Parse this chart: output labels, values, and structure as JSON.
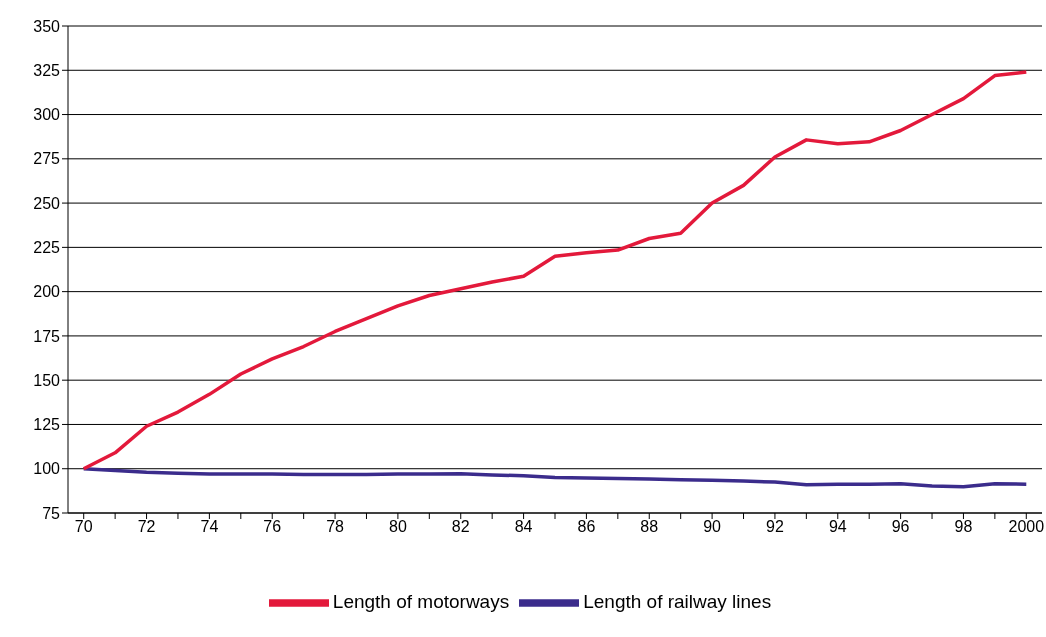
{
  "chart_data": {
    "type": "line",
    "categories": [
      "70",
      null,
      "72",
      null,
      "74",
      null,
      "76",
      null,
      "78",
      null,
      "80",
      null,
      "82",
      null,
      "84",
      null,
      "86",
      null,
      "88",
      null,
      "90",
      null,
      "92",
      null,
      "94",
      null,
      "96",
      null,
      "98",
      null,
      "2000"
    ],
    "series": [
      {
        "name": "Length of railway lines",
        "color": "#3b2c8c",
        "values": [
          100,
          99,
          98,
          97.5,
          97,
          97,
          97,
          96.8,
          96.8,
          96.8,
          97,
          97,
          97.2,
          96.5,
          96,
          95,
          94.8,
          94.5,
          94.2,
          93.8,
          93.5,
          93,
          92.5,
          91,
          91.3,
          91.3,
          91.5,
          90.2,
          89.8,
          91.5,
          91.3
        ]
      },
      {
        "name": "Length of motorways",
        "color": "#e3193b",
        "values": [
          100,
          109,
          124,
          132,
          142,
          153.5,
          162,
          169,
          177.5,
          184.7,
          192,
          197.8,
          201.6,
          205.4,
          208.7,
          220,
          222,
          223.5,
          230,
          233,
          250,
          260,
          276,
          285.7,
          283.5,
          284.6,
          291,
          300,
          309,
          322,
          324
        ]
      }
    ],
    "ylim": [
      75,
      350
    ],
    "yticks": [
      75,
      100,
      125,
      150,
      175,
      200,
      225,
      250,
      275,
      300,
      325,
      350
    ],
    "grid": "y",
    "legend": "bottom",
    "marker": "none",
    "line_style": "solid"
  }
}
